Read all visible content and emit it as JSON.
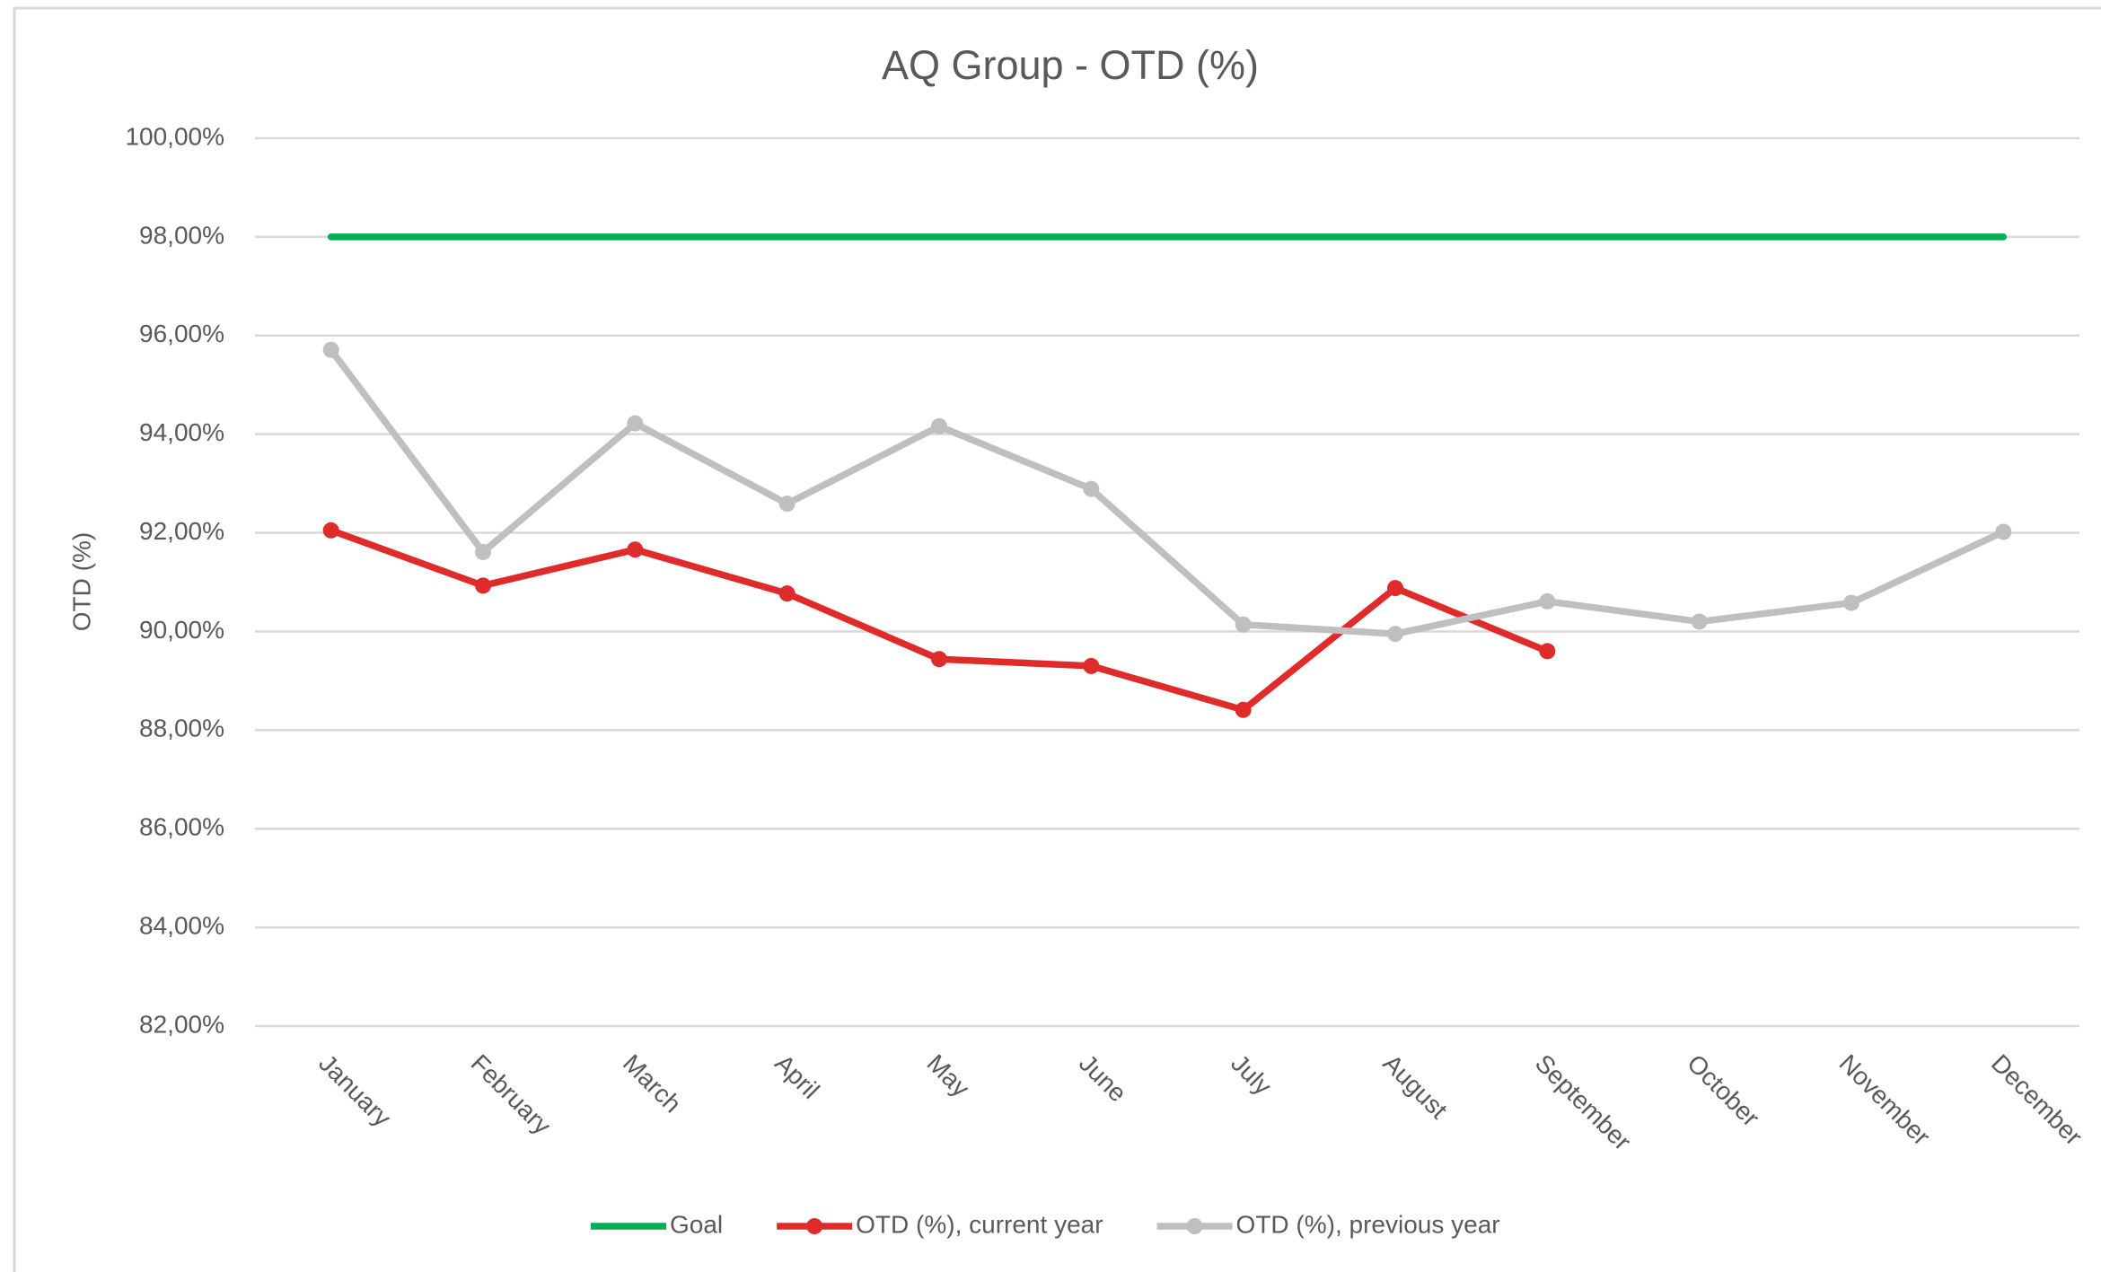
{
  "chart_data": {
    "type": "line",
    "title": "AQ Group - OTD (%)",
    "y_label": "OTD (%)",
    "categories": [
      "January",
      "February",
      "March",
      "April",
      "May",
      "June",
      "July",
      "August",
      "September",
      "October",
      "November",
      "December"
    ],
    "series": [
      {
        "name": "Goal",
        "color": "#00b050",
        "marker": false,
        "values": [
          98,
          98,
          98,
          98,
          98,
          98,
          98,
          98,
          98,
          98,
          98,
          98
        ]
      },
      {
        "name": "OTD (%), current year",
        "color": "#e02b2b",
        "marker": true,
        "values": [
          92.05,
          90.93,
          91.66,
          90.77,
          89.44,
          89.3,
          88.41,
          90.88,
          89.6,
          null,
          null,
          null
        ]
      },
      {
        "name": "OTD (%), previous year",
        "color": "#bfbfbf",
        "marker": true,
        "values": [
          95.71,
          91.61,
          94.22,
          92.59,
          94.16,
          92.89,
          90.14,
          89.95,
          90.61,
          90.2,
          90.58,
          92.02
        ]
      }
    ],
    "ylim": [
      82,
      100
    ],
    "yticks": [
      {
        "value": 82,
        "label": "82,00%"
      },
      {
        "value": 84,
        "label": "84,00%"
      },
      {
        "value": 86,
        "label": "86,00%"
      },
      {
        "value": 88,
        "label": "88,00%"
      },
      {
        "value": 90,
        "label": "90,00%"
      },
      {
        "value": 92,
        "label": "92,00%"
      },
      {
        "value": 94,
        "label": "94,00%"
      },
      {
        "value": 96,
        "label": "96,00%"
      },
      {
        "value": 98,
        "label": "98,00%"
      },
      {
        "value": 100,
        "label": "100,00%"
      }
    ],
    "grid": true,
    "legend": "bottom"
  }
}
